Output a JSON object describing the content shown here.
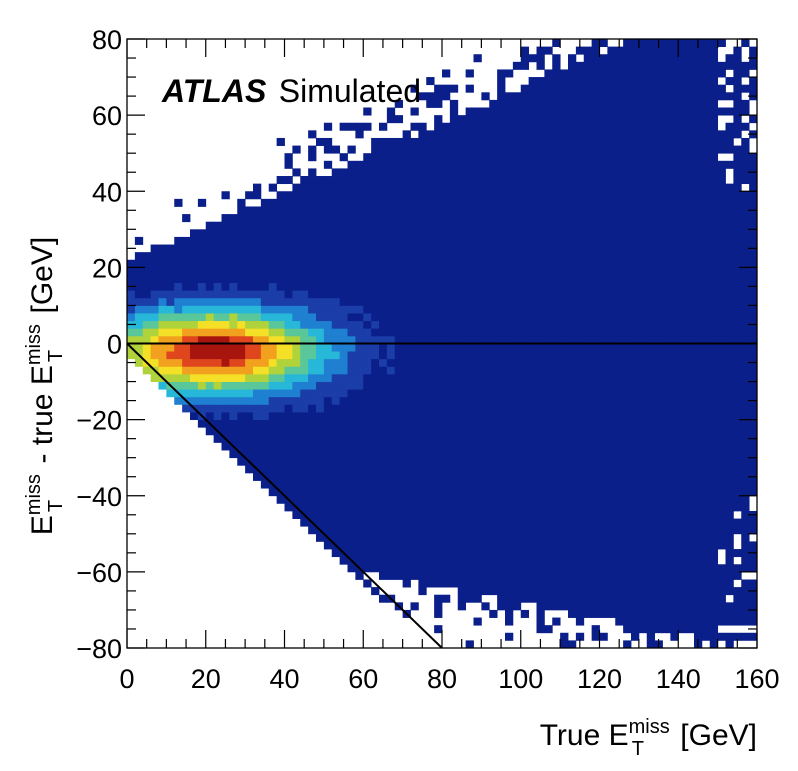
{
  "chart_data": {
    "type": "heatmap",
    "title": "",
    "annotation": {
      "experiment": "ATLAS",
      "label": "Simulated"
    },
    "xlabel": {
      "prefix": "True E",
      "sup": "miss",
      "sub": "T",
      "suffix": " [GeV]"
    },
    "ylabel": {
      "part1_main": "E",
      "part1_sup": "miss",
      "part1_sub": "T",
      "middle": " - true E",
      "part2_sup": "miss",
      "part2_sub": "T",
      "suffix": " [GeV]"
    },
    "xlim": [
      0,
      160
    ],
    "ylim": [
      -80,
      80
    ],
    "xticks": [
      "0",
      "20",
      "40",
      "60",
      "80",
      "100",
      "120",
      "140",
      "160"
    ],
    "yticks": [
      "80",
      "60",
      "40",
      "20",
      "0",
      "−20",
      "−40",
      "−60",
      "−80"
    ],
    "bins": {
      "x_bins": 80,
      "y_bins": 80
    },
    "density_model": {
      "peak_x": 22,
      "peak_y": -2,
      "description": "Resolution band: core near x≈10–55, y≈−5 to 2; spread widens with x to roughly ±60 at x≈160; lower edge bounded by y = −x"
    },
    "colormap": [
      "#0b1f8a",
      "#1a3da8",
      "#1f7fd0",
      "#27b7d8",
      "#59c79a",
      "#b0d23b",
      "#f5e028",
      "#f2a11e",
      "#e0461d",
      "#a8150f"
    ],
    "reference_lines": [
      {
        "name": "zero-line",
        "points": [
          [
            0,
            0
          ],
          [
            160,
            0
          ]
        ]
      },
      {
        "name": "diagonal-line",
        "points": [
          [
            0,
            0
          ],
          [
            80,
            -80
          ]
        ]
      }
    ]
  }
}
